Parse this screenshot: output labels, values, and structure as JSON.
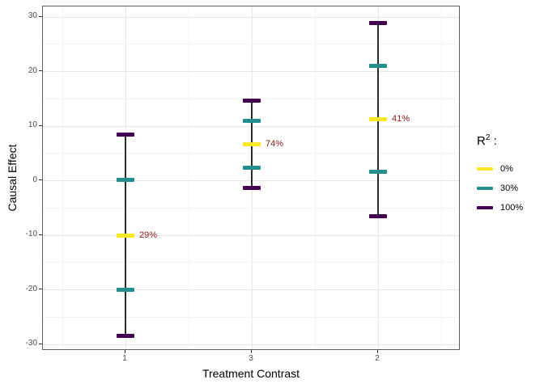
{
  "chart_data": {
    "type": "interval",
    "title": "",
    "xlabel": "Treatment Contrast",
    "ylabel": "Causal Effect",
    "x_categories": [
      "1",
      "3",
      "2"
    ],
    "ylim": [
      -30,
      30
    ],
    "yticks_major": [
      30,
      20,
      10,
      0,
      -10,
      -20,
      -30
    ],
    "yticks_minor": [
      25,
      15,
      5,
      -5,
      -15,
      -25
    ],
    "grid": "major+minor",
    "legend_position": "right",
    "legend": {
      "title_base": "R",
      "title_sup": "2",
      "title_colon": " :",
      "items": [
        {
          "label": "0%",
          "color": "#FDE725"
        },
        {
          "label": "30%",
          "color": "#21908C"
        },
        {
          "label": "100%",
          "color": "#440154"
        }
      ]
    },
    "groups": [
      {
        "x": "1",
        "estimate": -10.0,
        "annotation": "29%",
        "intervals": [
          {
            "r2": "30%",
            "low": -20.0,
            "high": 0.1
          },
          {
            "r2": "100%",
            "low": -28.4,
            "high": 8.4
          }
        ]
      },
      {
        "x": "3",
        "estimate": 6.6,
        "annotation": "74%",
        "intervals": [
          {
            "r2": "30%",
            "low": 2.3,
            "high": 11.0
          },
          {
            "r2": "100%",
            "low": -1.3,
            "high": 14.6
          }
        ]
      },
      {
        "x": "2",
        "estimate": 11.2,
        "annotation": "41%",
        "intervals": [
          {
            "r2": "30%",
            "low": 1.6,
            "high": 21.0
          },
          {
            "r2": "100%",
            "low": -6.5,
            "high": 28.9
          }
        ]
      }
    ],
    "colors": {
      "estimate": "#FDE725",
      "annotation_text": "#8B1A1A",
      "range_line": "#2b2b2b",
      "grid_major": "#e7e7e7",
      "grid_minor": "#f4f4f4",
      "panel_border": "#5f5f5f",
      "axis_text": "#4d4d4d",
      "tick_mark": "#333333"
    }
  }
}
